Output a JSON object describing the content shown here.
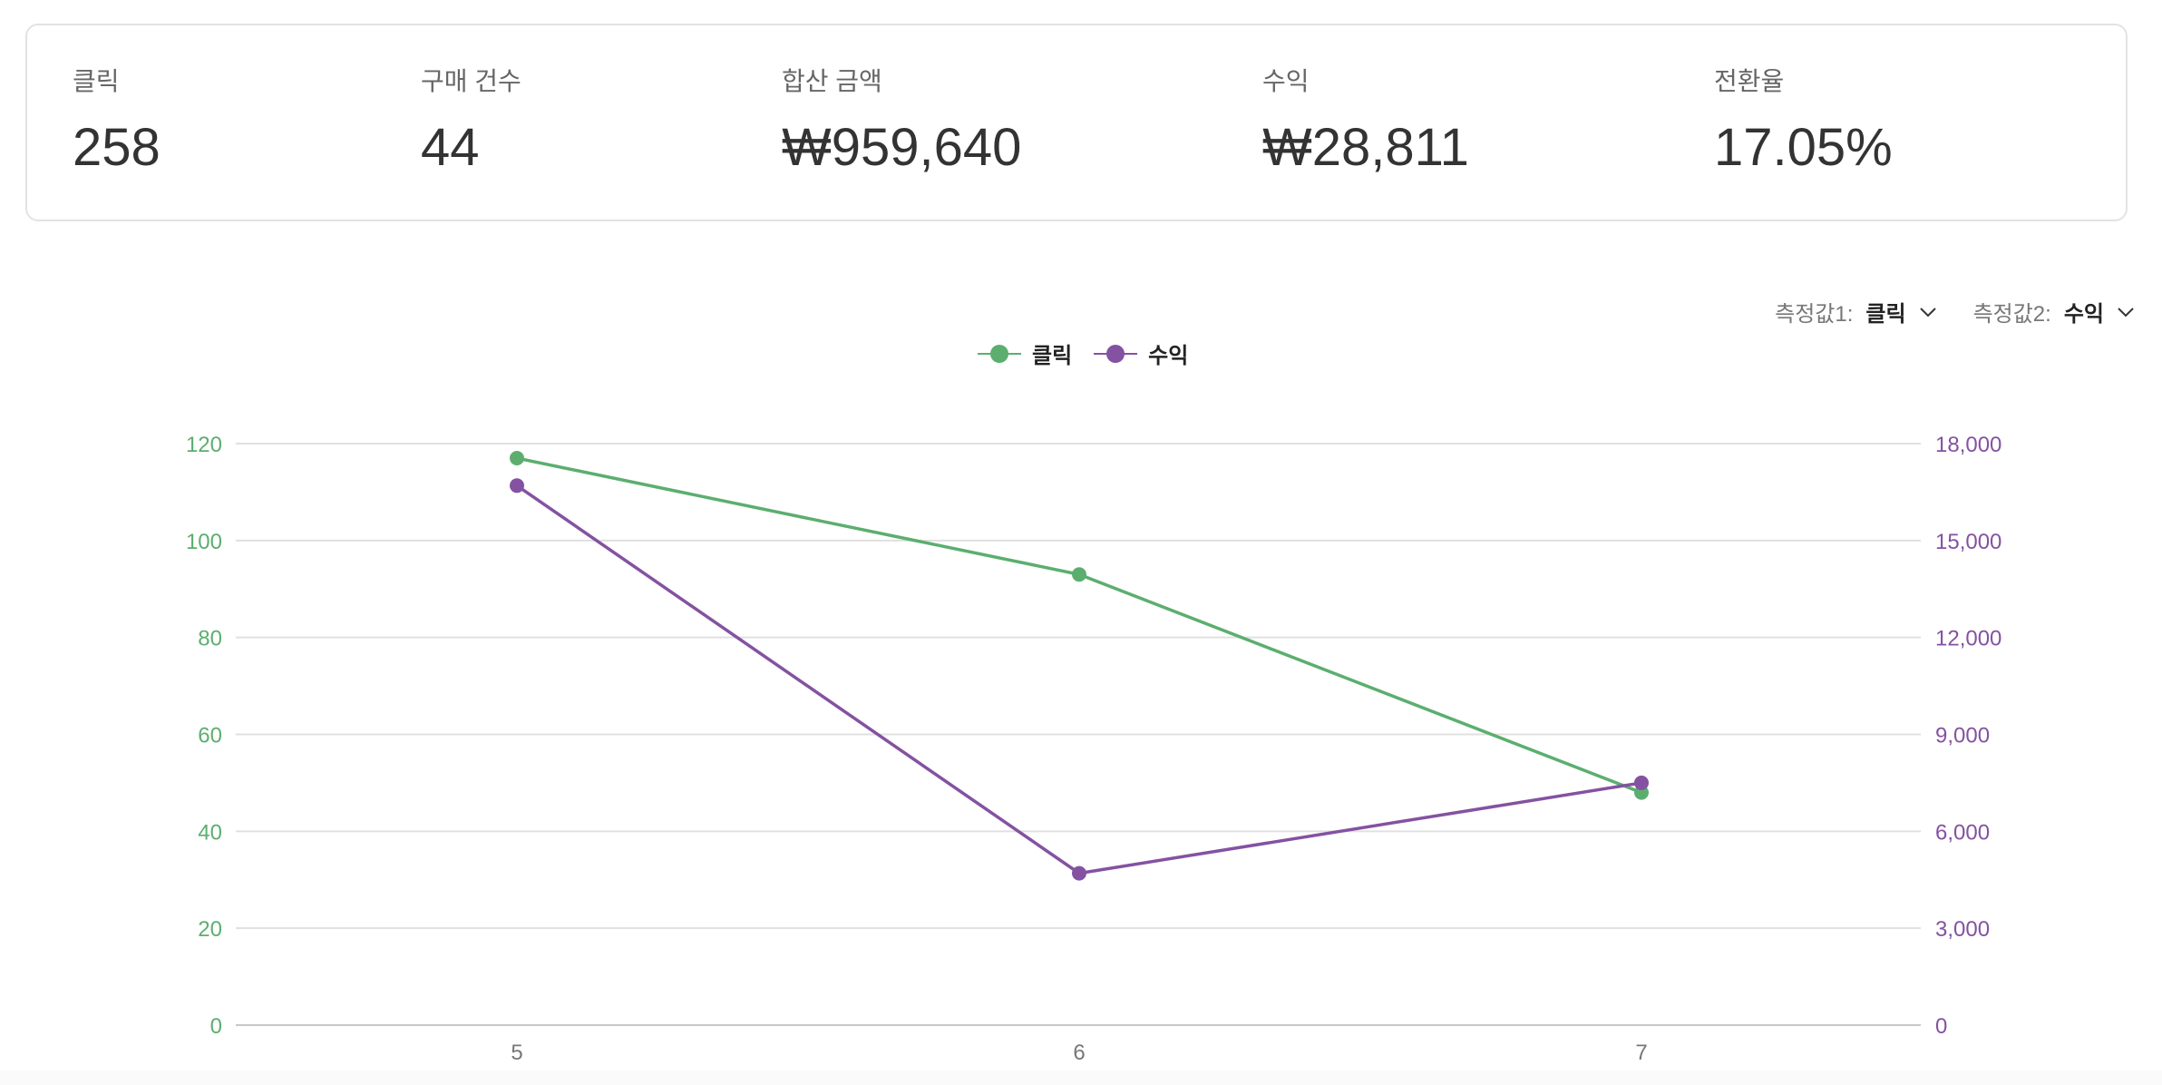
{
  "summary": {
    "metrics": [
      {
        "label": "클릭",
        "value": "258"
      },
      {
        "label": "구매 건수",
        "value": "44"
      },
      {
        "label": "합산 금액",
        "value": "₩959,640"
      },
      {
        "label": "수익",
        "value": "₩28,811"
      },
      {
        "label": "전환율",
        "value": "17.05%"
      }
    ]
  },
  "controls": {
    "measure1": {
      "label": "측정값1:",
      "value": "클릭"
    },
    "measure2": {
      "label": "측정값2:",
      "value": "수익"
    }
  },
  "colors": {
    "clicks": "#5cae6f",
    "revenue": "#8452a1",
    "grid": "#e0e0e0",
    "axis": "#c8c8c8"
  },
  "chart_data": {
    "type": "line",
    "x": [
      "5",
      "6",
      "7"
    ],
    "series": [
      {
        "name": "클릭",
        "axis": "left",
        "values": [
          117,
          93,
          48
        ]
      },
      {
        "name": "수익",
        "axis": "right",
        "values": [
          16700,
          4700,
          7500
        ]
      }
    ],
    "y_left": {
      "ticks": [
        "0",
        "20",
        "40",
        "60",
        "80",
        "100",
        "120"
      ],
      "range": [
        0,
        120
      ]
    },
    "y_right": {
      "ticks": [
        "0",
        "3,000",
        "6,000",
        "9,000",
        "12,000",
        "15,000",
        "18,000"
      ],
      "range": [
        0,
        18000
      ]
    },
    "legend_position": "top-center",
    "grid": true
  }
}
